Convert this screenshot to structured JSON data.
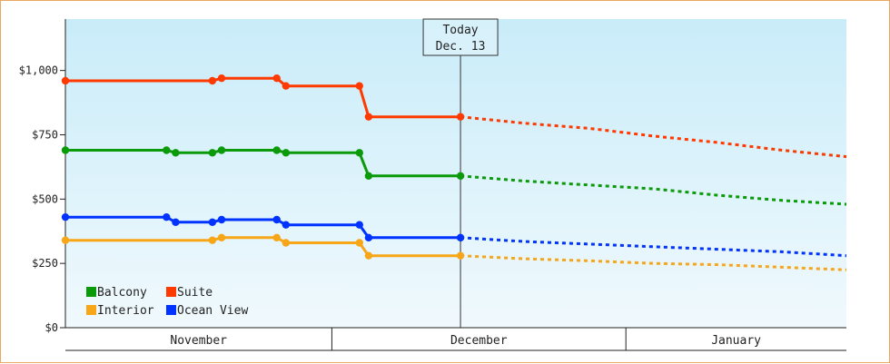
{
  "chart_data": {
    "type": "line",
    "title": "",
    "xlabel": "",
    "ylabel": "",
    "ylim": [
      0,
      1200
    ],
    "y_ticks": [
      "$0",
      "$250",
      "$500",
      "$750",
      "$1,000"
    ],
    "y_tick_values": [
      0,
      250,
      500,
      750,
      1000
    ],
    "x_start": "Oct 31",
    "x_end": "Jan 24",
    "months": [
      {
        "label": "November",
        "start": "Oct 31",
        "end": "Nov 29"
      },
      {
        "label": "December",
        "start": "Nov 29",
        "end": "Dec 31"
      },
      {
        "label": "January",
        "start": "Dec 31",
        "end": "Jan 24"
      }
    ],
    "today": {
      "line1": "Today",
      "line2": "Dec. 13",
      "date": "Dec 13"
    },
    "legend_position": "bottom-left",
    "grid": false,
    "colors": {
      "Balcony": "#0a9a0a",
      "Suite": "#ff3a00",
      "Interior": "#f7a618",
      "Ocean View": "#0033ff",
      "background_top": "#c9ecf9",
      "background_bottom": "#f0f9fd",
      "frame": "#e8a862"
    },
    "series": [
      {
        "name": "Balcony",
        "history": [
          [
            "Oct 31",
            690
          ],
          [
            "Nov 11",
            690
          ],
          [
            "Nov 12",
            680
          ],
          [
            "Nov 16",
            680
          ],
          [
            "Nov 17",
            690
          ],
          [
            "Nov 23",
            690
          ],
          [
            "Nov 24",
            680
          ],
          [
            "Dec 2",
            680
          ],
          [
            "Dec 3",
            590
          ],
          [
            "Dec 13",
            590
          ]
        ],
        "forecast": [
          [
            "Dec 13",
            590
          ],
          [
            "Dec 20",
            570
          ],
          [
            "Dec 27",
            555
          ],
          [
            "Jan 3",
            540
          ],
          [
            "Jan 10",
            515
          ],
          [
            "Jan 17",
            495
          ],
          [
            "Jan 24",
            480
          ]
        ]
      },
      {
        "name": "Suite",
        "history": [
          [
            "Oct 31",
            960
          ],
          [
            "Nov 16",
            960
          ],
          [
            "Nov 17",
            970
          ],
          [
            "Nov 23",
            970
          ],
          [
            "Nov 24",
            940
          ],
          [
            "Dec 2",
            940
          ],
          [
            "Dec 3",
            820
          ],
          [
            "Dec 13",
            820
          ]
        ],
        "forecast": [
          [
            "Dec 13",
            820
          ],
          [
            "Dec 20",
            795
          ],
          [
            "Dec 27",
            775
          ],
          [
            "Jan 3",
            745
          ],
          [
            "Jan 10",
            720
          ],
          [
            "Jan 17",
            690
          ],
          [
            "Jan 24",
            665
          ]
        ]
      },
      {
        "name": "Interior",
        "history": [
          [
            "Oct 31",
            340
          ],
          [
            "Nov 16",
            340
          ],
          [
            "Nov 17",
            350
          ],
          [
            "Nov 23",
            350
          ],
          [
            "Nov 24",
            330
          ],
          [
            "Dec 2",
            330
          ],
          [
            "Dec 3",
            280
          ],
          [
            "Dec 13",
            280
          ]
        ],
        "forecast": [
          [
            "Dec 13",
            280
          ],
          [
            "Dec 20",
            268
          ],
          [
            "Dec 27",
            260
          ],
          [
            "Jan 3",
            250
          ],
          [
            "Jan 10",
            245
          ],
          [
            "Jan 17",
            235
          ],
          [
            "Jan 24",
            225
          ]
        ]
      },
      {
        "name": "Ocean View",
        "history": [
          [
            "Oct 31",
            430
          ],
          [
            "Nov 11",
            430
          ],
          [
            "Nov 12",
            410
          ],
          [
            "Nov 16",
            410
          ],
          [
            "Nov 17",
            420
          ],
          [
            "Nov 23",
            420
          ],
          [
            "Nov 24",
            400
          ],
          [
            "Dec 2",
            400
          ],
          [
            "Dec 3",
            350
          ],
          [
            "Dec 13",
            350
          ]
        ],
        "forecast": [
          [
            "Dec 13",
            350
          ],
          [
            "Dec 20",
            335
          ],
          [
            "Dec 27",
            325
          ],
          [
            "Jan 3",
            315
          ],
          [
            "Jan 10",
            305
          ],
          [
            "Jan 17",
            295
          ],
          [
            "Jan 24",
            280
          ]
        ]
      }
    ],
    "legend_order": [
      "Balcony",
      "Suite",
      "Interior",
      "Ocean View"
    ]
  }
}
